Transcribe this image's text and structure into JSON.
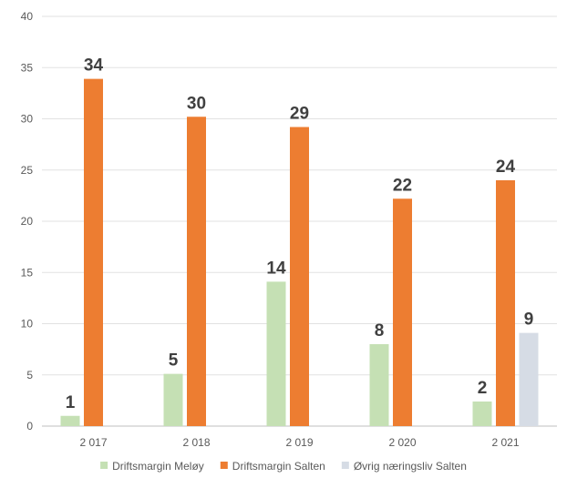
{
  "chart_data": {
    "type": "bar",
    "categories": [
      "2 017",
      "2 018",
      "2 019",
      "2 020",
      "2 021"
    ],
    "series": [
      {
        "name": "Driftsmargin Meløy",
        "color": "#c5e0b4",
        "values": [
          1,
          5,
          14,
          8,
          2
        ]
      },
      {
        "name": "Driftsmargin Salten",
        "color": "#ed7d31",
        "values": [
          34,
          30,
          29,
          22,
          24
        ]
      },
      {
        "name": "Øvrig næringsliv Salten",
        "color": "#d6dce5",
        "values": [
          null,
          null,
          null,
          null,
          9
        ]
      }
    ],
    "data_labels": [
      [
        "1",
        "5",
        "14",
        "8",
        "2"
      ],
      [
        "34",
        "30",
        "29",
        "22",
        "24"
      ],
      [
        null,
        null,
        null,
        null,
        "9"
      ]
    ],
    "actual_heights": [
      [
        1.0,
        5.1,
        14.1,
        8.0,
        2.4
      ],
      [
        33.9,
        30.2,
        29.2,
        22.2,
        24.0
      ],
      [
        null,
        null,
        null,
        null,
        9.1
      ]
    ],
    "ylim": [
      0,
      40
    ],
    "yticks": [
      "0",
      "5",
      "10",
      "15",
      "20",
      "25",
      "30",
      "35",
      "40"
    ],
    "title": "",
    "xlabel": "",
    "ylabel": "",
    "grid": true,
    "legend_position": "bottom"
  }
}
